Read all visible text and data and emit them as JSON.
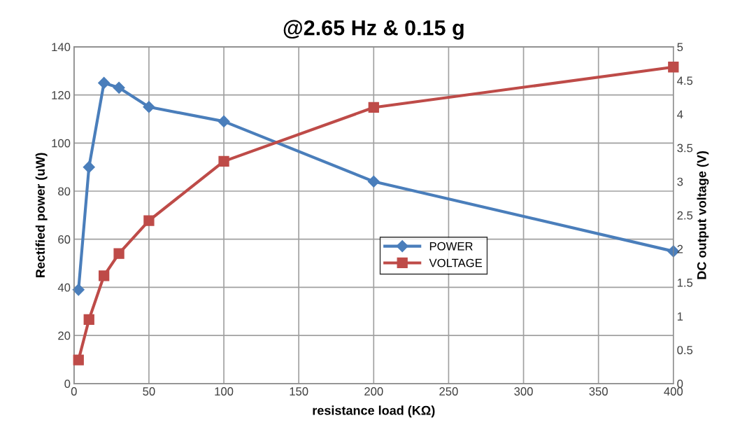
{
  "chart_data": {
    "type": "line",
    "title": "@2.65 Hz & 0.15 g",
    "xlabel": "resistance load (KΩ)",
    "ylabel": "Rectified power (uW)",
    "y2label": "DC output voltage (V)",
    "x": [
      3,
      10,
      20,
      30,
      50,
      100,
      200,
      400
    ],
    "series": [
      {
        "name": "POWER",
        "color": "#4a7ebb",
        "marker": "diamond",
        "values": [
          39,
          90,
          125,
          123,
          115,
          109,
          84,
          55
        ]
      },
      {
        "name": "VOLTAGE",
        "color": "#be4b48",
        "marker": "square",
        "axis": "y2",
        "values": [
          0.35,
          0.95,
          1.6,
          1.93,
          2.42,
          3.3,
          4.1,
          4.7
        ]
      }
    ],
    "xlim": [
      0,
      400
    ],
    "xticks": [
      0,
      50,
      100,
      150,
      200,
      250,
      300,
      350,
      400
    ],
    "ylim": [
      0,
      140
    ],
    "yticks": [
      0,
      20,
      40,
      60,
      80,
      100,
      120,
      140
    ],
    "y2lim": [
      0,
      5
    ],
    "y2ticks": [
      0,
      0.5,
      1,
      1.5,
      2,
      2.5,
      3,
      3.5,
      4,
      4.5,
      5
    ],
    "grid": true,
    "legend": "center",
    "line_style": "solid"
  }
}
